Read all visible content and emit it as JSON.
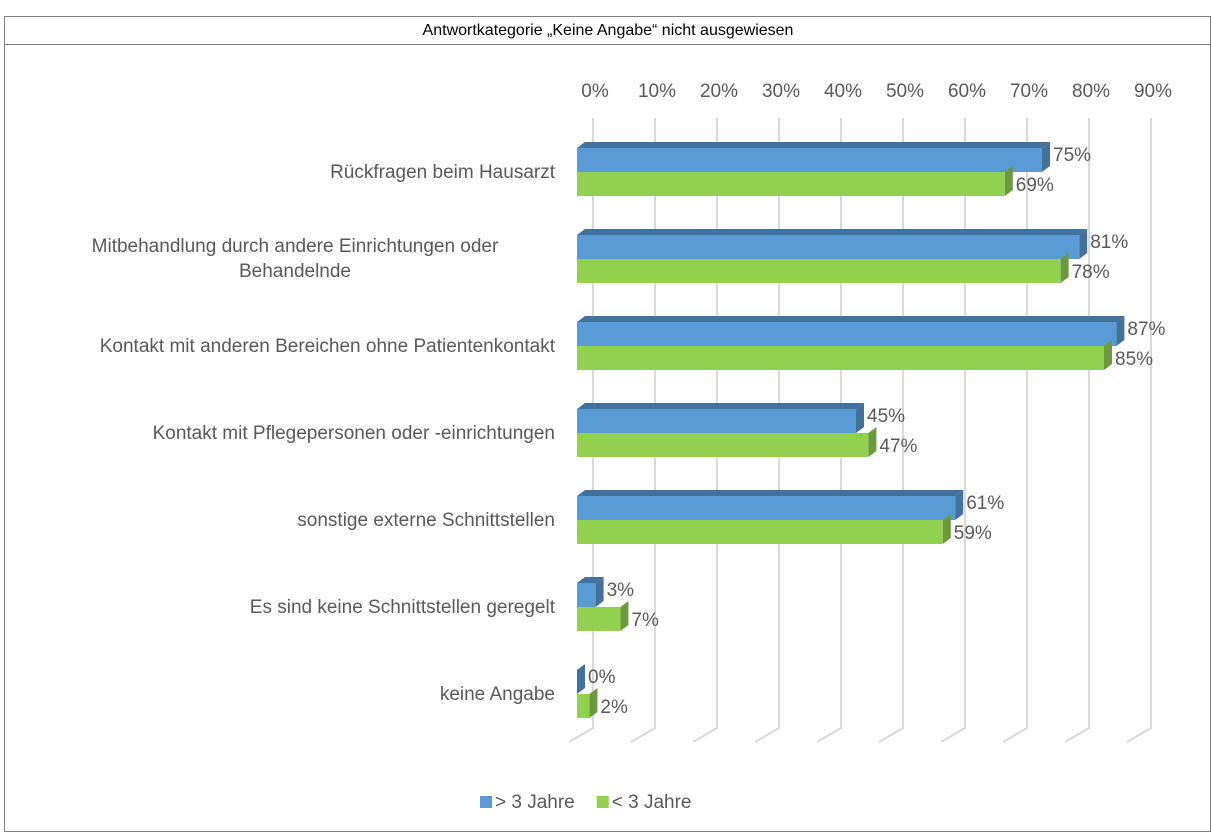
{
  "chart_data": {
    "type": "bar",
    "orientation": "horizontal",
    "title": "Antwortkategorie „Keine Angabe“ nicht ausgewiesen",
    "categories": [
      "Rückfragen beim Hausarzt",
      "Mitbehandlung durch andere Einrichtungen oder Behandelnde",
      "Kontakt mit anderen Bereichen ohne Patientenkontakt",
      "Kontakt mit Pflegepersonen oder -einrichtungen",
      "sonstige externe Schnittstellen",
      "Es sind keine Schnittstellen geregelt",
      "keine Angabe"
    ],
    "series": [
      {
        "name": "> 3 Jahre",
        "color": "#5b9bd5",
        "side": "#41719c",
        "values": [
          75,
          81,
          87,
          45,
          61,
          3,
          0
        ],
        "value_labels": [
          "75%",
          "81%",
          "87%",
          "45%",
          "61%",
          "3%",
          "0%"
        ]
      },
      {
        "name": "< 3 Jahre",
        "color": "#92d050",
        "side": "#6a9a3a",
        "values": [
          69,
          78,
          85,
          47,
          59,
          7,
          2
        ],
        "value_labels": [
          "69%",
          "78%",
          "85%",
          "47%",
          "59%",
          "7%",
          "2%"
        ]
      }
    ],
    "xlim": [
      0,
      90
    ],
    "xticks": [
      {
        "value": 0,
        "label": "0%"
      },
      {
        "value": 10,
        "label": "10%"
      },
      {
        "value": 20,
        "label": "20%"
      },
      {
        "value": 30,
        "label": "30%"
      },
      {
        "value": 40,
        "label": "40%"
      },
      {
        "value": 50,
        "label": "50%"
      },
      {
        "value": 60,
        "label": "60%"
      },
      {
        "value": 70,
        "label": "70%"
      },
      {
        "value": 80,
        "label": "80%"
      },
      {
        "value": 90,
        "label": "90%"
      }
    ],
    "grid": true,
    "legend": "bottom"
  }
}
